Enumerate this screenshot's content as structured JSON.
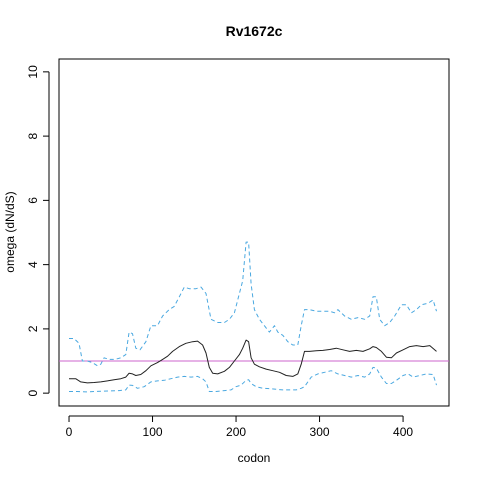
{
  "chart_data": {
    "type": "line",
    "title": "Rv1672c",
    "xlabel": "codon",
    "ylabel": "omega (dN/dS)",
    "xlim": [
      -12,
      455
    ],
    "ylim": [
      -0.4,
      10.4
    ],
    "x_ticks": [
      0,
      100,
      200,
      300,
      400
    ],
    "y_ticks": [
      0,
      2,
      4,
      6,
      8,
      10
    ],
    "grid": false,
    "legend": "none",
    "reference_line": {
      "y": 1,
      "color": "#cc66cc"
    },
    "series": [
      {
        "role": "upper",
        "style": "dashed",
        "color": "#4aa8e0",
        "points": [
          [
            0,
            1.7
          ],
          [
            6,
            1.7
          ],
          [
            12,
            1.55
          ],
          [
            16,
            1.0
          ],
          [
            22,
            1.0
          ],
          [
            28,
            0.95
          ],
          [
            34,
            0.85
          ],
          [
            38,
            0.9
          ],
          [
            42,
            1.1
          ],
          [
            48,
            1.05
          ],
          [
            55,
            1.05
          ],
          [
            62,
            1.1
          ],
          [
            68,
            1.2
          ],
          [
            72,
            1.9
          ],
          [
            76,
            1.85
          ],
          [
            80,
            1.4
          ],
          [
            85,
            1.35
          ],
          [
            92,
            1.6
          ],
          [
            98,
            2.1
          ],
          [
            106,
            2.1
          ],
          [
            112,
            2.4
          ],
          [
            120,
            2.6
          ],
          [
            126,
            2.7
          ],
          [
            132,
            3.0
          ],
          [
            138,
            3.3
          ],
          [
            144,
            3.25
          ],
          [
            152,
            3.25
          ],
          [
            158,
            3.3
          ],
          [
            164,
            3.1
          ],
          [
            170,
            2.3
          ],
          [
            178,
            2.2
          ],
          [
            186,
            2.2
          ],
          [
            192,
            2.3
          ],
          [
            198,
            2.5
          ],
          [
            204,
            3.1
          ],
          [
            208,
            3.5
          ],
          [
            212,
            4.7
          ],
          [
            215,
            4.7
          ],
          [
            218,
            3.4
          ],
          [
            222,
            2.6
          ],
          [
            228,
            2.3
          ],
          [
            234,
            2.1
          ],
          [
            240,
            1.9
          ],
          [
            246,
            2.1
          ],
          [
            250,
            1.9
          ],
          [
            256,
            1.8
          ],
          [
            262,
            1.6
          ],
          [
            268,
            1.5
          ],
          [
            274,
            1.5
          ],
          [
            278,
            2.1
          ],
          [
            282,
            2.6
          ],
          [
            288,
            2.6
          ],
          [
            296,
            2.55
          ],
          [
            304,
            2.55
          ],
          [
            312,
            2.55
          ],
          [
            318,
            2.5
          ],
          [
            322,
            2.6
          ],
          [
            330,
            2.4
          ],
          [
            338,
            2.3
          ],
          [
            346,
            2.35
          ],
          [
            354,
            2.3
          ],
          [
            360,
            2.4
          ],
          [
            364,
            3.0
          ],
          [
            368,
            3.0
          ],
          [
            372,
            2.3
          ],
          [
            378,
            2.1
          ],
          [
            384,
            2.2
          ],
          [
            390,
            2.4
          ],
          [
            398,
            2.75
          ],
          [
            404,
            2.75
          ],
          [
            410,
            2.5
          ],
          [
            416,
            2.6
          ],
          [
            422,
            2.75
          ],
          [
            430,
            2.8
          ],
          [
            436,
            2.9
          ],
          [
            440,
            2.55
          ]
        ]
      },
      {
        "role": "estimate",
        "style": "solid",
        "color": "#222222",
        "points": [
          [
            0,
            0.45
          ],
          [
            8,
            0.45
          ],
          [
            14,
            0.35
          ],
          [
            22,
            0.32
          ],
          [
            30,
            0.33
          ],
          [
            38,
            0.35
          ],
          [
            46,
            0.38
          ],
          [
            54,
            0.42
          ],
          [
            62,
            0.45
          ],
          [
            68,
            0.5
          ],
          [
            72,
            0.62
          ],
          [
            76,
            0.6
          ],
          [
            80,
            0.55
          ],
          [
            86,
            0.58
          ],
          [
            92,
            0.7
          ],
          [
            98,
            0.85
          ],
          [
            106,
            0.95
          ],
          [
            112,
            1.05
          ],
          [
            118,
            1.15
          ],
          [
            124,
            1.3
          ],
          [
            132,
            1.45
          ],
          [
            140,
            1.55
          ],
          [
            148,
            1.6
          ],
          [
            154,
            1.62
          ],
          [
            160,
            1.5
          ],
          [
            164,
            1.25
          ],
          [
            168,
            0.8
          ],
          [
            172,
            0.62
          ],
          [
            178,
            0.6
          ],
          [
            186,
            0.68
          ],
          [
            192,
            0.8
          ],
          [
            198,
            1.0
          ],
          [
            204,
            1.2
          ],
          [
            208,
            1.4
          ],
          [
            212,
            1.65
          ],
          [
            215,
            1.6
          ],
          [
            218,
            1.1
          ],
          [
            222,
            0.9
          ],
          [
            228,
            0.82
          ],
          [
            236,
            0.75
          ],
          [
            244,
            0.7
          ],
          [
            252,
            0.65
          ],
          [
            260,
            0.55
          ],
          [
            268,
            0.52
          ],
          [
            274,
            0.6
          ],
          [
            278,
            0.9
          ],
          [
            282,
            1.3
          ],
          [
            288,
            1.3
          ],
          [
            296,
            1.32
          ],
          [
            304,
            1.33
          ],
          [
            312,
            1.36
          ],
          [
            320,
            1.4
          ],
          [
            328,
            1.35
          ],
          [
            336,
            1.3
          ],
          [
            344,
            1.33
          ],
          [
            352,
            1.3
          ],
          [
            360,
            1.38
          ],
          [
            364,
            1.45
          ],
          [
            368,
            1.42
          ],
          [
            374,
            1.3
          ],
          [
            380,
            1.12
          ],
          [
            386,
            1.1
          ],
          [
            392,
            1.25
          ],
          [
            400,
            1.35
          ],
          [
            408,
            1.45
          ],
          [
            416,
            1.48
          ],
          [
            424,
            1.45
          ],
          [
            432,
            1.48
          ],
          [
            440,
            1.3
          ]
        ]
      },
      {
        "role": "lower",
        "style": "dashed",
        "color": "#4aa8e0",
        "points": [
          [
            0,
            0.05
          ],
          [
            10,
            0.05
          ],
          [
            20,
            0.04
          ],
          [
            30,
            0.05
          ],
          [
            40,
            0.06
          ],
          [
            50,
            0.07
          ],
          [
            60,
            0.08
          ],
          [
            68,
            0.1
          ],
          [
            72,
            0.25
          ],
          [
            76,
            0.24
          ],
          [
            82,
            0.15
          ],
          [
            90,
            0.2
          ],
          [
            98,
            0.35
          ],
          [
            106,
            0.38
          ],
          [
            114,
            0.4
          ],
          [
            122,
            0.45
          ],
          [
            130,
            0.5
          ],
          [
            138,
            0.52
          ],
          [
            146,
            0.5
          ],
          [
            154,
            0.52
          ],
          [
            160,
            0.45
          ],
          [
            164,
            0.35
          ],
          [
            168,
            0.05
          ],
          [
            176,
            0.05
          ],
          [
            186,
            0.08
          ],
          [
            194,
            0.1
          ],
          [
            200,
            0.2
          ],
          [
            206,
            0.25
          ],
          [
            212,
            0.4
          ],
          [
            215,
            0.42
          ],
          [
            218,
            0.3
          ],
          [
            224,
            0.2
          ],
          [
            232,
            0.15
          ],
          [
            240,
            0.14
          ],
          [
            248,
            0.12
          ],
          [
            256,
            0.1
          ],
          [
            264,
            0.1
          ],
          [
            272,
            0.1
          ],
          [
            278,
            0.15
          ],
          [
            282,
            0.2
          ],
          [
            290,
            0.5
          ],
          [
            298,
            0.6
          ],
          [
            306,
            0.65
          ],
          [
            314,
            0.7
          ],
          [
            322,
            0.6
          ],
          [
            330,
            0.55
          ],
          [
            338,
            0.5
          ],
          [
            346,
            0.55
          ],
          [
            354,
            0.5
          ],
          [
            360,
            0.6
          ],
          [
            364,
            0.8
          ],
          [
            368,
            0.78
          ],
          [
            374,
            0.5
          ],
          [
            380,
            0.3
          ],
          [
            386,
            0.3
          ],
          [
            392,
            0.4
          ],
          [
            400,
            0.55
          ],
          [
            406,
            0.6
          ],
          [
            412,
            0.5
          ],
          [
            420,
            0.55
          ],
          [
            428,
            0.6
          ],
          [
            436,
            0.58
          ],
          [
            440,
            0.25
          ]
        ]
      }
    ]
  }
}
